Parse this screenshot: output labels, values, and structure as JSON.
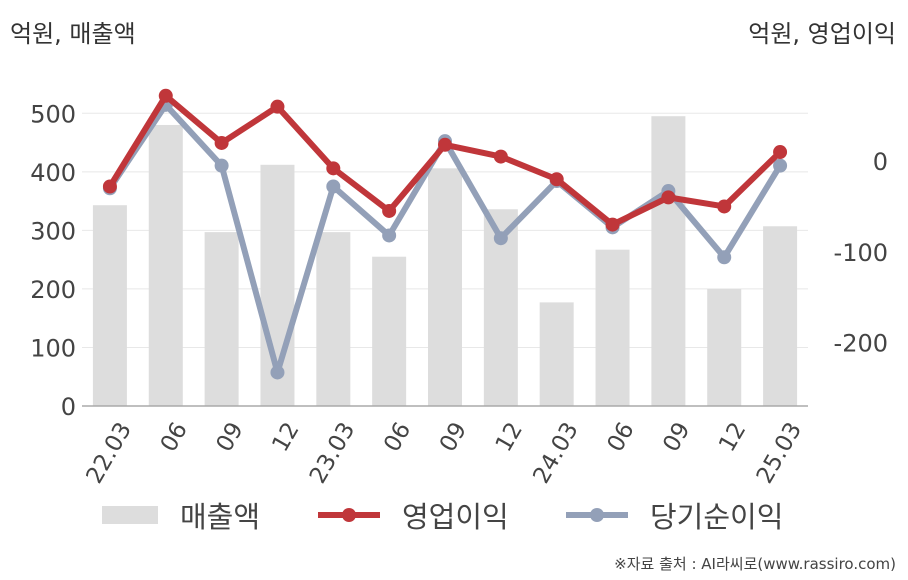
{
  "units": {
    "left": "억원, 매출액",
    "right": "억원, 영업이익"
  },
  "source": "※자료 출처 : AI라씨로(www.rassiro.com)",
  "colors": {
    "revenue": "#dddddd",
    "operating": "#c0363a",
    "net": "#93a0b8",
    "grid": "#e8e8e8",
    "axis": "#aaaaaa"
  },
  "chart_data": {
    "type": "bar+line",
    "categories": [
      "22.03",
      "06",
      "09",
      "12",
      "23.03",
      "06",
      "09",
      "12",
      "24.03",
      "06",
      "09",
      "12",
      "25.03"
    ],
    "left_axis": {
      "range": [
        0,
        550
      ],
      "ticks": [
        0,
        100,
        200,
        300,
        400,
        500
      ]
    },
    "right_axis": {
      "range": [
        -270,
        85
      ],
      "ticks": [
        0,
        -100,
        -200
      ]
    },
    "series": [
      {
        "name": "매출액",
        "type": "bar",
        "axis": "left",
        "values": [
          343,
          480,
          297,
          412,
          297,
          255,
          406,
          336,
          177,
          267,
          495,
          200,
          307
        ]
      },
      {
        "name": "영업이익",
        "type": "line",
        "axis": "right",
        "values": [
          -28,
          72,
          20,
          60,
          -8,
          -55,
          18,
          5,
          -20,
          -70,
          -40,
          -50,
          10
        ]
      },
      {
        "name": "당기순이익",
        "type": "line",
        "axis": "right",
        "values": [
          -30,
          62,
          -5,
          -233,
          -28,
          -82,
          22,
          -85,
          -22,
          -73,
          -33,
          -106,
          -5
        ]
      }
    ]
  }
}
